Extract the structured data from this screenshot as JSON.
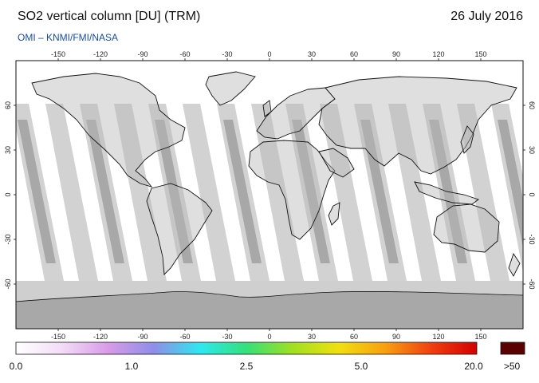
{
  "header": {
    "title": "SO2 vertical column [DU] (TRM)",
    "date": "26 July 2016",
    "credit": "OMI  –  KNMI/FMI/NASA"
  },
  "map": {
    "projection": "equirectangular",
    "lon_ticks": [
      "-150",
      "-120",
      "-90",
      "-60",
      "-30",
      "0",
      "30",
      "60",
      "90",
      "120",
      "150"
    ],
    "lat_ticks": [
      "60",
      "30",
      "0",
      "-30",
      "-60"
    ],
    "colors": {
      "ocean": "#ffffff",
      "land_outline": "#111111",
      "orbit_gap_light": "#d2d2d2",
      "orbit_gap_dark": "#a8a8a8",
      "polar_fill": "#a8a8a8"
    }
  },
  "colorbar": {
    "labels": [
      "0.0",
      "1.0",
      "2.5",
      "5.0",
      "20.0"
    ],
    "overflow_label": ">50",
    "overflow_color": "#5a0000",
    "gradient_colors": [
      "#ffffff",
      "#f3dcf7",
      "#d99be8",
      "#8e8ee8",
      "#2ee8f0",
      "#34e07a",
      "#a0e020",
      "#f0e010",
      "#f8a010",
      "#f04010",
      "#d40000"
    ]
  }
}
